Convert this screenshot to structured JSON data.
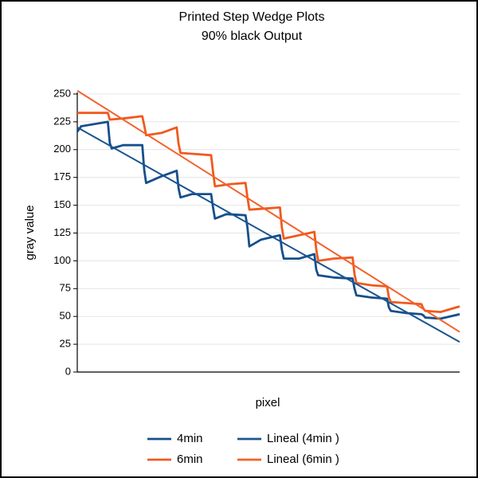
{
  "chart_data": {
    "type": "line",
    "title": "Printed Step Wedge Plots",
    "subtitle": "90% black Output",
    "x_label": "pixel",
    "y_label": "gray value",
    "xlim": [
      0,
      100
    ],
    "ylim": [
      0,
      250
    ],
    "yticks": [
      0,
      25,
      50,
      75,
      100,
      125,
      150,
      175,
      200,
      225,
      250
    ],
    "grid": true,
    "legend": "bottom",
    "series": [
      {
        "name": "4min",
        "color": "#164f8c",
        "x": [
          0,
          1,
          8,
          8.5,
          9,
          12,
          17,
          17.5,
          18,
          22,
          26,
          26.5,
          27,
          30,
          35,
          35.5,
          36,
          39,
          44,
          44.5,
          45,
          48,
          53,
          53.5,
          54,
          58,
          62,
          62.5,
          63,
          67,
          72,
          72.5,
          73,
          77,
          81,
          81.5,
          82,
          86,
          90,
          90.5,
          91,
          95,
          100
        ],
        "values": [
          216,
          221,
          225,
          206,
          201,
          204,
          204,
          182,
          170,
          176,
          181,
          165,
          157,
          160,
          160,
          148,
          138,
          142,
          141,
          130,
          113,
          119,
          123,
          110,
          102,
          102,
          106,
          92,
          87,
          85,
          84,
          75,
          69,
          67,
          66,
          58,
          55,
          53,
          52,
          51,
          49,
          48,
          52
        ]
      },
      {
        "name": "6min",
        "color": "#f05a1e",
        "x": [
          0,
          8,
          8.5,
          12,
          17,
          17.5,
          18,
          22,
          26,
          26.5,
          27,
          31,
          35,
          35.5,
          36,
          40,
          44,
          44.5,
          45,
          49,
          53,
          53.5,
          54,
          58,
          62,
          62.5,
          63,
          67,
          72,
          72.5,
          73,
          77,
          81,
          81.5,
          82,
          86,
          90,
          90.5,
          91,
          95,
          100
        ],
        "values": [
          233,
          233,
          227,
          228,
          230,
          222,
          213,
          215,
          220,
          205,
          197,
          196,
          195,
          180,
          167,
          169,
          170,
          157,
          146,
          147,
          148,
          130,
          120,
          123,
          126,
          110,
          100,
          102,
          103,
          88,
          80,
          78,
          77,
          67,
          63,
          62,
          61,
          57,
          55,
          54,
          59
        ]
      },
      {
        "name": "Lineal (4min )",
        "color": "#1a5590",
        "x": [
          0,
          100
        ],
        "values": [
          220,
          27
        ]
      },
      {
        "name": "Lineal (6min )",
        "color": "#f2612a",
        "x": [
          0,
          100
        ],
        "values": [
          253,
          36
        ]
      }
    ]
  }
}
